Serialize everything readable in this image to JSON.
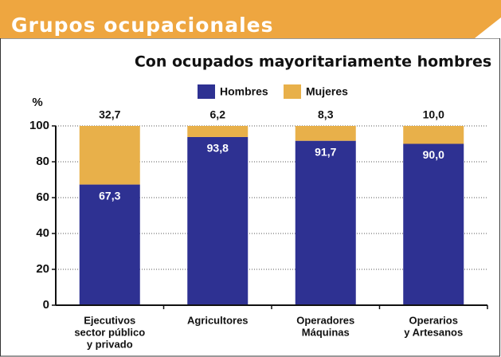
{
  "chart_data": {
    "type": "stacked_bar",
    "header": "Grupos ocupacionales",
    "title": "Con ocupados mayoritariamente hombres",
    "ylabel": "%",
    "categories": [
      [
        "Ejecutivos",
        "sector público",
        "y privado"
      ],
      [
        "Agricultores"
      ],
      [
        "Operadores",
        "Máquinas"
      ],
      [
        "Operarios",
        "y Artesanos"
      ]
    ],
    "series": [
      {
        "name": "Hombres",
        "color": "#2e3192",
        "values": [
          67.3,
          93.8,
          91.7,
          90.0
        ],
        "value_labels": [
          "67,3",
          "93,8",
          "91,7",
          "90,0"
        ]
      },
      {
        "name": "Mujeres",
        "color": "#e8b04a",
        "values": [
          32.7,
          6.2,
          8.3,
          10.0
        ],
        "value_labels": [
          "32,7",
          "6,2",
          "8,3",
          "10,0"
        ]
      }
    ],
    "ylim": [
      0,
      100
    ],
    "yticks": [
      0,
      20,
      40,
      60,
      80,
      100
    ],
    "grid": true
  }
}
